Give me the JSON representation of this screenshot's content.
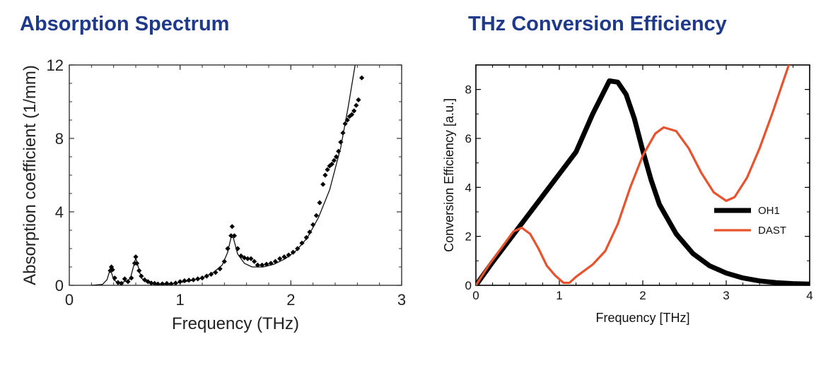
{
  "chart_data": [
    {
      "type": "scatter",
      "title": "Absorption Spectrum",
      "xlabel": "Frequency (THz)",
      "ylabel": "Absorption coefficient (1/mm)",
      "xlim": [
        0,
        3
      ],
      "ylim": [
        0,
        12
      ],
      "xticks": [
        "0",
        "1",
        "2",
        "3"
      ],
      "yticks": [
        "0",
        "4",
        "8",
        "12"
      ],
      "grid": false,
      "series": [
        {
          "style": "markers",
          "points": [
            [
              0.37,
              0.8
            ],
            [
              0.38,
              1.0
            ],
            [
              0.39,
              0.85
            ],
            [
              0.41,
              0.4
            ],
            [
              0.44,
              0.15
            ],
            [
              0.47,
              0.1
            ],
            [
              0.5,
              0.35
            ],
            [
              0.53,
              0.2
            ],
            [
              0.56,
              0.4
            ],
            [
              0.59,
              1.2
            ],
            [
              0.6,
              1.55
            ],
            [
              0.61,
              1.2
            ],
            [
              0.63,
              0.8
            ],
            [
              0.65,
              0.5
            ],
            [
              0.68,
              0.3
            ],
            [
              0.71,
              0.2
            ],
            [
              0.74,
              0.12
            ],
            [
              0.77,
              0.1
            ],
            [
              0.8,
              0.07
            ],
            [
              0.84,
              0.08
            ],
            [
              0.88,
              0.1
            ],
            [
              0.92,
              0.08
            ],
            [
              0.96,
              0.12
            ],
            [
              1.0,
              0.2
            ],
            [
              1.04,
              0.25
            ],
            [
              1.08,
              0.28
            ],
            [
              1.12,
              0.3
            ],
            [
              1.16,
              0.35
            ],
            [
              1.2,
              0.4
            ],
            [
              1.24,
              0.5
            ],
            [
              1.28,
              0.6
            ],
            [
              1.32,
              0.7
            ],
            [
              1.36,
              0.9
            ],
            [
              1.4,
              1.3
            ],
            [
              1.43,
              2.0
            ],
            [
              1.46,
              2.7
            ],
            [
              1.47,
              3.2
            ],
            [
              1.49,
              2.7
            ],
            [
              1.52,
              2.0
            ],
            [
              1.55,
              1.6
            ],
            [
              1.58,
              1.5
            ],
            [
              1.61,
              1.45
            ],
            [
              1.64,
              1.45
            ],
            [
              1.67,
              1.3
            ],
            [
              1.7,
              1.1
            ],
            [
              1.74,
              1.1
            ],
            [
              1.78,
              1.15
            ],
            [
              1.82,
              1.2
            ],
            [
              1.86,
              1.3
            ],
            [
              1.9,
              1.45
            ],
            [
              1.94,
              1.55
            ],
            [
              1.98,
              1.65
            ],
            [
              2.02,
              1.8
            ],
            [
              2.06,
              2.0
            ],
            [
              2.1,
              2.3
            ],
            [
              2.14,
              2.6
            ],
            [
              2.17,
              2.9
            ],
            [
              2.2,
              3.3
            ],
            [
              2.23,
              3.8
            ],
            [
              2.26,
              4.5
            ],
            [
              2.29,
              5.5
            ],
            [
              2.31,
              6.0
            ],
            [
              2.33,
              6.3
            ],
            [
              2.35,
              6.5
            ],
            [
              2.37,
              6.6
            ],
            [
              2.39,
              6.8
            ],
            [
              2.41,
              7.0
            ],
            [
              2.43,
              7.3
            ],
            [
              2.45,
              7.8
            ],
            [
              2.47,
              8.3
            ],
            [
              2.49,
              8.8
            ],
            [
              2.51,
              9.0
            ],
            [
              2.53,
              9.2
            ],
            [
              2.55,
              9.3
            ],
            [
              2.57,
              9.5
            ],
            [
              2.59,
              9.8
            ],
            [
              2.61,
              10.1
            ],
            [
              2.64,
              11.3
            ]
          ]
        },
        {
          "style": "line",
          "points": [
            [
              0.2,
              0.0
            ],
            [
              0.3,
              0.05
            ],
            [
              0.34,
              0.3
            ],
            [
              0.37,
              0.9
            ],
            [
              0.4,
              0.3
            ],
            [
              0.45,
              0.1
            ],
            [
              0.5,
              0.2
            ],
            [
              0.55,
              0.35
            ],
            [
              0.6,
              1.5
            ],
            [
              0.65,
              0.4
            ],
            [
              0.7,
              0.15
            ],
            [
              0.8,
              0.05
            ],
            [
              0.9,
              0.05
            ],
            [
              1.0,
              0.15
            ],
            [
              1.1,
              0.25
            ],
            [
              1.2,
              0.4
            ],
            [
              1.3,
              0.7
            ],
            [
              1.38,
              1.1
            ],
            [
              1.43,
              1.8
            ],
            [
              1.46,
              2.6
            ],
            [
              1.48,
              2.6
            ],
            [
              1.52,
              1.7
            ],
            [
              1.58,
              1.2
            ],
            [
              1.65,
              1.0
            ],
            [
              1.75,
              1.0
            ],
            [
              1.85,
              1.15
            ],
            [
              1.95,
              1.45
            ],
            [
              2.05,
              1.9
            ],
            [
              2.15,
              2.6
            ],
            [
              2.25,
              3.7
            ],
            [
              2.35,
              5.2
            ],
            [
              2.45,
              7.5
            ],
            [
              2.52,
              9.8
            ],
            [
              2.58,
              12.0
            ]
          ]
        }
      ]
    },
    {
      "type": "line",
      "title": "THz Conversion Efficiency",
      "xlabel": "Frequency [THz]",
      "ylabel": "Conversion Efficiency [a.u.]",
      "xlim": [
        0,
        4
      ],
      "ylim": [
        0,
        9
      ],
      "xticks": [
        "0",
        "1",
        "2",
        "3",
        "4"
      ],
      "yticks": [
        "0",
        "2",
        "4",
        "6",
        "8"
      ],
      "grid": false,
      "legend": "center-right",
      "series": [
        {
          "name": "OH1",
          "color": "#000000",
          "points": [
            [
              0.0,
              0.0
            ],
            [
              0.2,
              0.95
            ],
            [
              0.4,
              1.85
            ],
            [
              0.6,
              2.75
            ],
            [
              0.8,
              3.65
            ],
            [
              1.0,
              4.55
            ],
            [
              1.2,
              5.45
            ],
            [
              1.4,
              7.0
            ],
            [
              1.6,
              8.35
            ],
            [
              1.7,
              8.3
            ],
            [
              1.8,
              7.8
            ],
            [
              1.9,
              6.8
            ],
            [
              2.0,
              5.5
            ],
            [
              2.1,
              4.3
            ],
            [
              2.2,
              3.3
            ],
            [
              2.4,
              2.1
            ],
            [
              2.6,
              1.3
            ],
            [
              2.8,
              0.8
            ],
            [
              3.0,
              0.5
            ],
            [
              3.2,
              0.3
            ],
            [
              3.4,
              0.18
            ],
            [
              3.6,
              0.11
            ],
            [
              3.8,
              0.07
            ],
            [
              4.0,
              0.05
            ]
          ]
        },
        {
          "name": "DAST",
          "color": "#e8532e",
          "points": [
            [
              0.0,
              0.0
            ],
            [
              0.15,
              0.8
            ],
            [
              0.3,
              1.5
            ],
            [
              0.45,
              2.2
            ],
            [
              0.55,
              2.35
            ],
            [
              0.65,
              2.1
            ],
            [
              0.75,
              1.5
            ],
            [
              0.85,
              0.8
            ],
            [
              0.95,
              0.4
            ],
            [
              1.05,
              0.1
            ],
            [
              1.12,
              0.1
            ],
            [
              1.2,
              0.35
            ],
            [
              1.4,
              0.85
            ],
            [
              1.55,
              1.4
            ],
            [
              1.7,
              2.5
            ],
            [
              1.85,
              4.0
            ],
            [
              2.0,
              5.3
            ],
            [
              2.15,
              6.2
            ],
            [
              2.25,
              6.45
            ],
            [
              2.4,
              6.3
            ],
            [
              2.55,
              5.6
            ],
            [
              2.7,
              4.6
            ],
            [
              2.85,
              3.8
            ],
            [
              3.0,
              3.45
            ],
            [
              3.1,
              3.6
            ],
            [
              3.25,
              4.4
            ],
            [
              3.4,
              5.6
            ],
            [
              3.55,
              7.0
            ],
            [
              3.7,
              8.5
            ],
            [
              3.75,
              9.0
            ]
          ]
        }
      ]
    }
  ]
}
